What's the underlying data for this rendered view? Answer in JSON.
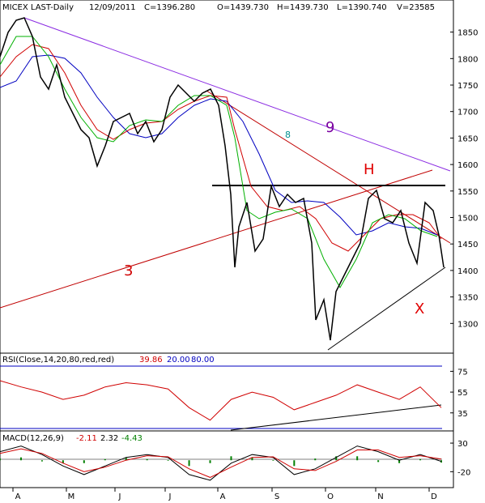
{
  "header": {
    "symbol": "MICEX LAST-Daily",
    "date": "12/09/2011",
    "close": "C=1396.280",
    "open": "O=1439.730",
    "high": "H=1439.730",
    "low": "L=1390.740",
    "volume": "V=23585"
  },
  "annotations": {
    "label_h": "H",
    "label_x": "X",
    "label_3": "3",
    "label_9": "9",
    "label_8": "8"
  },
  "colors": {
    "price": "#000000",
    "ma_fast": "#00b000",
    "ma_mid": "#d00000",
    "ma_slow": "#0000c0",
    "trend_purple": "#8a2be2",
    "trend_red": "#c00000",
    "rsi_line": "#d00000",
    "ref_line": "#0000c0",
    "macd_line": "#000000",
    "signal_line": "#d00000",
    "histogram": "#008000",
    "label_h": "#e00000",
    "label_x": "#e00000",
    "label_3": "#d00000",
    "label_9": "#7a00a0",
    "label_8": "#009090"
  },
  "chart_data": [
    {
      "type": "line",
      "subtype": "candlestick",
      "panel": "price",
      "ylim": [
        1250,
        1880
      ],
      "yticks": [
        1300,
        1350,
        1400,
        1450,
        1500,
        1550,
        1600,
        1650,
        1700,
        1750,
        1800,
        1850
      ],
      "x_months": [
        "A",
        "M",
        "J",
        "J",
        "A",
        "S",
        "O",
        "N",
        "D"
      ],
      "series": [
        {
          "x": [
            "A",
            "A",
            "M",
            "M",
            "J",
            "J",
            "J",
            "J",
            "A",
            "A",
            "A",
            "S",
            "S",
            "S",
            "O",
            "O",
            "O",
            "N",
            "N",
            "N",
            "D",
            "D"
          ],
          "values": [
            1750,
            1855,
            1780,
            1700,
            1580,
            1640,
            1690,
            1730,
            1720,
            1400,
            1470,
            1520,
            1510,
            1480,
            1290,
            1330,
            1420,
            1540,
            1480,
            1420,
            1500,
            1396
          ]
        }
      ]
    },
    {
      "type": "line",
      "panel": "rsi",
      "title": "RSI(Close,14,20,80,red,red)",
      "current_values": [
        "39.86",
        "20.00",
        "80.00"
      ],
      "yticks": [
        35,
        55,
        75
      ],
      "ylim": [
        20,
        80
      ],
      "series": [
        {
          "values": [
            66,
            60,
            55,
            48,
            52,
            60,
            64,
            62,
            58,
            40,
            28,
            48,
            55,
            50,
            38,
            45,
            52,
            62,
            55,
            48,
            60,
            40
          ]
        }
      ]
    },
    {
      "type": "line",
      "panel": "macd",
      "title": "MACD(12,26,9)",
      "current_values": [
        "-2.11",
        "2.32",
        "-4.43"
      ],
      "yticks": [
        -20,
        30
      ],
      "ylim": [
        -45,
        40
      ],
      "series": [
        {
          "values": [
            15,
            25,
            10,
            -10,
            -25,
            -10,
            5,
            10,
            5,
            -25,
            -35,
            -5,
            10,
            5,
            -25,
            -15,
            5,
            25,
            15,
            0,
            10,
            -2
          ]
        },
        {
          "values": [
            12,
            20,
            12,
            -5,
            -20,
            -12,
            0,
            8,
            6,
            -15,
            -30,
            -12,
            5,
            6,
            -15,
            -18,
            -2,
            18,
            18,
            5,
            8,
            2
          ]
        }
      ]
    }
  ]
}
